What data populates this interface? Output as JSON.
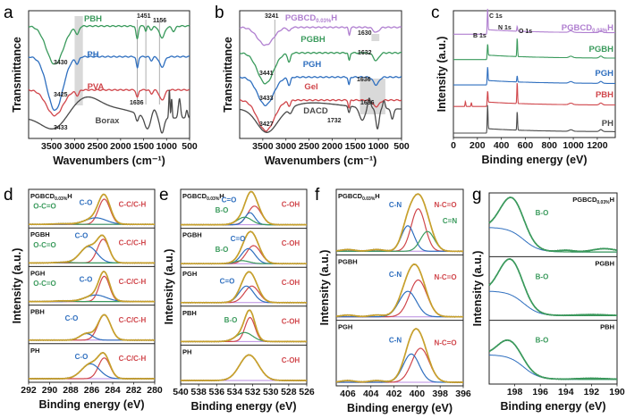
{
  "colors": {
    "green": "#3a9a5c",
    "blue": "#2f6fbf",
    "red": "#d0464b",
    "gray": "#4a4a4a",
    "purple": "#b07fd0",
    "gold": "#c7a02c",
    "baseline": "#b98be0",
    "highlight": "#d9d9d9"
  },
  "chart_data": [
    {
      "panel": "a",
      "type": "line",
      "title": "",
      "xlabel": "Wavenumbers (cm⁻¹)",
      "ylabel": "Transmittance",
      "xlim": [
        4000,
        500
      ],
      "xticks": [
        "3500",
        "3000",
        "2500",
        "2000",
        "1500",
        "1000",
        "500"
      ],
      "xtick_values": [
        3500,
        3000,
        2500,
        2000,
        1500,
        1000,
        500
      ],
      "series": [
        {
          "name": "PBH",
          "color": "green",
          "offset": 0.88,
          "dips": [
            [
              3430,
              0.3,
              180
            ],
            [
              2940,
              0.06,
              35
            ],
            [
              1640,
              0.1,
              25
            ],
            [
              1451,
              0.04,
              18
            ],
            [
              1330,
              0.03,
              30
            ],
            [
              1100,
              0.09,
              60
            ],
            [
              850,
              0.04,
              40
            ]
          ]
        },
        {
          "name": "PH",
          "color": "blue",
          "offset": 0.64,
          "dips": [
            [
              3425,
              0.42,
              170
            ],
            [
              2940,
              0.05,
              35
            ],
            [
              1636,
              0.09,
              22
            ],
            [
              1330,
              0.03,
              30
            ],
            [
              1100,
              0.08,
              55
            ]
          ]
        },
        {
          "name": "PVA",
          "color": "red",
          "offset": 0.38,
          "dips": [
            [
              3433,
              0.2,
              180
            ],
            [
              2940,
              0.04,
              35
            ],
            [
              1636,
              0.06,
              25
            ],
            [
              1330,
              0.03,
              30
            ],
            [
              1100,
              0.08,
              55
            ]
          ]
        },
        {
          "name": "Borax",
          "color": "gray",
          "offset": 0.18,
          "borax": true
        }
      ],
      "annotations": [
        "3430",
        "3425",
        "3433",
        "1451",
        "1156",
        "1636"
      ],
      "highlight_bands": [
        [
          3000,
          2820
        ]
      ],
      "ref_lines": [
        1636,
        1451,
        1156
      ]
    },
    {
      "panel": "b",
      "type": "line",
      "title": "",
      "xlabel": "Wavenumbers (cm⁻¹)",
      "ylabel": "Transmittance",
      "xlim": [
        4000,
        500
      ],
      "xticks": [
        "3500",
        "3000",
        "2500",
        "2000",
        "1500",
        "1000",
        "500"
      ],
      "xtick_values": [
        3500,
        3000,
        2500,
        2000,
        1500,
        1000,
        500
      ],
      "series": [
        {
          "name": "PGBCD0.03%H",
          "color": "purple",
          "offset": 0.87,
          "dips": [
            [
              3441,
              0.14,
              170
            ],
            [
              2930,
              0.03,
              30
            ],
            [
              1630,
              0.06,
              18
            ],
            [
              1050,
              0.04,
              60
            ]
          ]
        },
        {
          "name": "PGBH",
          "color": "green",
          "offset": 0.67,
          "dips": [
            [
              3441,
              0.24,
              170
            ],
            [
              2930,
              0.07,
              30
            ],
            [
              1632,
              0.06,
              18
            ],
            [
              1050,
              0.06,
              60
            ]
          ]
        },
        {
          "name": "PGH",
          "color": "blue",
          "offset": 0.48,
          "dips": [
            [
              3441,
              0.22,
              170
            ],
            [
              2930,
              0.06,
              30
            ],
            [
              1636,
              0.06,
              18
            ],
            [
              1050,
              0.06,
              60
            ]
          ]
        },
        {
          "name": "Gel",
          "color": "red",
          "offset": 0.3,
          "dips": [
            [
              3433,
              0.24,
              180
            ],
            [
              2930,
              0.04,
              30
            ],
            [
              1636,
              0.06,
              18
            ],
            [
              1050,
              0.05,
              70
            ]
          ]
        },
        {
          "name": "DACD",
          "color": "gray",
          "offset": 0.16,
          "dacd": true
        }
      ],
      "annotations": [
        "3241",
        "1630",
        "1632",
        "3441",
        "1636",
        "3433",
        "1636",
        "3427",
        "1732"
      ],
      "highlight_bands": [
        [
          1150,
          980
        ],
        [
          1400,
          850
        ]
      ],
      "ref_lines": [
        3241
      ]
    },
    {
      "panel": "c",
      "type": "line",
      "title": "",
      "xlabel": "Binding energy (eV)",
      "ylabel": "Intensity (a.u.)",
      "xlim": [
        0,
        1350
      ],
      "xticks": [
        "0",
        "200",
        "400",
        "600",
        "800",
        "1000",
        "1200"
      ],
      "xtick_values": [
        0,
        200,
        400,
        600,
        800,
        1000,
        1200
      ],
      "series": [
        {
          "name": "PGBCD0.03%H",
          "color": "purple",
          "offset": 0.8,
          "peaks": {
            "C1s": 0.2,
            "N1s": 0.0,
            "O1s": 0.04,
            "B1s": 0
          }
        },
        {
          "name": "PGBH",
          "color": "green",
          "offset": 0.6,
          "peaks": {
            "C1s": 0.12,
            "O1s": 0.15,
            "B1s": 0
          }
        },
        {
          "name": "PGH",
          "color": "blue",
          "offset": 0.4,
          "peaks": {
            "C1s": 0.14,
            "O1s": 0.05,
            "B1s": 0
          }
        },
        {
          "name": "PBH",
          "color": "red",
          "offset": 0.23,
          "peaks": {
            "C1s": 0.12,
            "O1s": 0.17,
            "B1s": 0.04
          }
        },
        {
          "name": "PH",
          "color": "gray",
          "offset": 0.02,
          "peaks": {
            "C1s": 0.22,
            "O1s": 0.15,
            "B1s": 0
          }
        }
      ],
      "peak_labels": [
        "B 1s",
        "C 1s",
        "N 1s",
        "O 1s"
      ],
      "peak_positions_eV": {
        "B 1s": 192,
        "C 1s": 285,
        "N 1s": 400,
        "O 1s": 532
      }
    },
    {
      "panel": "d",
      "type": "line",
      "xlabel": "Binding energy (eV)",
      "ylabel": "Intensity (a.u.)",
      "xlim": [
        292,
        280
      ],
      "xticks": [
        "292",
        "290",
        "288",
        "286",
        "284",
        "282",
        "280"
      ],
      "xtick_values": [
        292,
        290,
        288,
        286,
        284,
        282,
        280
      ],
      "subplots": [
        {
          "name": "PGBCD0.03%H",
          "components": [
            {
              "label": "C-C/C-H",
              "color": "red",
              "center": 284.8,
              "height": 0.85,
              "width": 0.55
            },
            {
              "label": "C-O",
              "color": "blue",
              "center": 285.6,
              "height": 0.22,
              "width": 1.0
            },
            {
              "label": "O-C=O",
              "color": "green",
              "center": 288.8,
              "height": 0.02,
              "width": 0.8
            }
          ]
        },
        {
          "name": "PGBH",
          "components": [
            {
              "label": "C-C/C-H",
              "color": "red",
              "center": 284.9,
              "height": 0.8,
              "width": 0.55
            },
            {
              "label": "C-O",
              "color": "blue",
              "center": 286.3,
              "height": 0.55,
              "width": 0.8
            },
            {
              "label": "O-C=O",
              "color": "green",
              "center": 288.7,
              "height": 0.02,
              "width": 0.8
            }
          ]
        },
        {
          "name": "PGH",
          "components": [
            {
              "label": "C-C/C-H",
              "color": "red",
              "center": 284.8,
              "height": 0.85,
              "width": 0.5
            },
            {
              "label": "C-O",
              "color": "blue",
              "center": 285.6,
              "height": 0.22,
              "width": 1.0
            },
            {
              "label": "O-C=O",
              "color": "green",
              "center": 288.8,
              "height": 0.02,
              "width": 0.8
            }
          ]
        },
        {
          "name": "PBH",
          "components": [
            {
              "label": "C-C/C-H",
              "color": "red",
              "center": 284.8,
              "height": 0.85,
              "width": 0.6
            },
            {
              "label": "C-O",
              "color": "blue",
              "center": 286.5,
              "height": 0.22,
              "width": 0.6
            }
          ]
        },
        {
          "name": "PH",
          "components": [
            {
              "label": "C-C/C-H",
              "color": "red",
              "center": 284.8,
              "height": 0.7,
              "width": 0.55
            },
            {
              "label": "C-O",
              "color": "blue",
              "center": 286.1,
              "height": 0.5,
              "width": 0.85
            }
          ]
        }
      ]
    },
    {
      "panel": "e",
      "type": "line",
      "xlabel": "Binding energy (eV)",
      "ylabel": "Intensity (a.u.)",
      "xlim": [
        540,
        526
      ],
      "xticks": [
        "540",
        "538",
        "536",
        "534",
        "532",
        "530",
        "528",
        "526"
      ],
      "xtick_values": [
        540,
        538,
        536,
        534,
        532,
        530,
        528,
        526
      ],
      "subplots": [
        {
          "name": "PGBCD0.03%H",
          "components": [
            {
              "label": "C-OH",
              "color": "red",
              "center": 531.8,
              "height": 0.62,
              "width": 0.75
            },
            {
              "label": "C=O",
              "color": "blue",
              "center": 532.3,
              "height": 0.4,
              "width": 0.55
            },
            {
              "label": "B-O",
              "color": "green",
              "center": 532.9,
              "height": 0.25,
              "width": 0.8
            }
          ]
        },
        {
          "name": "PGBH",
          "components": [
            {
              "label": "C-OH",
              "color": "red",
              "center": 531.9,
              "height": 0.6,
              "width": 0.8
            },
            {
              "label": "C=O",
              "color": "blue",
              "center": 532.5,
              "height": 0.5,
              "width": 0.75
            },
            {
              "label": "B-O",
              "color": "green",
              "center": 533.2,
              "height": 0.1,
              "width": 0.8
            }
          ]
        },
        {
          "name": "PGH",
          "components": [
            {
              "label": "C-OH",
              "color": "red",
              "center": 532.1,
              "height": 0.55,
              "width": 0.8
            },
            {
              "label": "C=O",
              "color": "blue",
              "center": 532.7,
              "height": 0.55,
              "width": 0.8
            }
          ]
        },
        {
          "name": "PBH",
          "components": [
            {
              "label": "C-OH",
              "color": "red",
              "center": 532.3,
              "height": 0.8,
              "width": 0.55
            },
            {
              "label": "B-O",
              "color": "green",
              "center": 532.9,
              "height": 0.3,
              "width": 0.9
            }
          ]
        },
        {
          "name": "PH",
          "components": [
            {
              "label": "C-OH",
              "color": "red",
              "center": 532.4,
              "height": 0.85,
              "width": 1.05
            }
          ]
        }
      ]
    },
    {
      "panel": "f",
      "type": "line",
      "xlabel": "Binding energy (eV)",
      "ylabel": "Intensity (a.u.)",
      "xlim": [
        407,
        396
      ],
      "xticks": [
        "406",
        "404",
        "402",
        "400",
        "398",
        "396"
      ],
      "xtick_values": [
        406,
        404,
        402,
        400,
        398,
        396
      ],
      "subplots": [
        {
          "name": "PGBCD0.03%H",
          "components": [
            {
              "label": "N-C=O",
              "color": "red",
              "center": 399.9,
              "height": 0.75,
              "width": 0.6
            },
            {
              "label": "C-N",
              "color": "blue",
              "center": 400.8,
              "height": 0.45,
              "width": 0.55
            },
            {
              "label": "C=N",
              "color": "green",
              "center": 399.1,
              "height": 0.35,
              "width": 0.6
            }
          ]
        },
        {
          "name": "PGBH",
          "components": [
            {
              "label": "N-C=O",
              "color": "red",
              "center": 399.9,
              "height": 0.65,
              "width": 0.75
            },
            {
              "label": "C-N",
              "color": "blue",
              "center": 400.8,
              "height": 0.45,
              "width": 0.75
            }
          ]
        },
        {
          "name": "PGH",
          "components": [
            {
              "label": "N-C=O",
              "color": "red",
              "center": 399.7,
              "height": 0.6,
              "width": 0.75
            },
            {
              "label": "C-N",
              "color": "blue",
              "center": 400.5,
              "height": 0.5,
              "width": 0.7
            }
          ]
        }
      ]
    },
    {
      "panel": "g",
      "type": "line",
      "xlabel": "Binding energy (eV)",
      "ylabel": "Intensity (a.u.)",
      "xlim": [
        200,
        190
      ],
      "xticks": [
        "198",
        "196",
        "194",
        "192",
        "190"
      ],
      "xtick_values": [
        198,
        196,
        194,
        192,
        190
      ],
      "subplots": [
        {
          "name": "PGBCD0.03%H",
          "components": [
            {
              "label": "B-O",
              "color": "green",
              "center": 198.2,
              "height": 0.62,
              "width": 0.9
            }
          ]
        },
        {
          "name": "PGBH",
          "components": [
            {
              "label": "B-O",
              "color": "green",
              "center": 198.3,
              "height": 0.65,
              "width": 0.9
            }
          ]
        },
        {
          "name": "PBH",
          "components": [
            {
              "label": "B-O",
              "color": "green",
              "center": 198.4,
              "height": 0.32,
              "width": 0.9
            }
          ]
        }
      ]
    }
  ],
  "panel_letters": [
    "a",
    "b",
    "c",
    "d",
    "e",
    "f",
    "g"
  ]
}
